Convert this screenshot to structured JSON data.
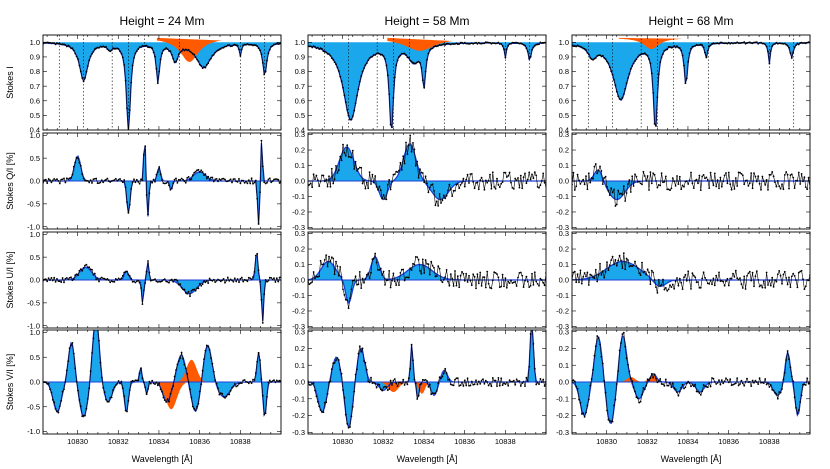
{
  "figure": {
    "colors": {
      "absorption_fill": "#1aa7ec",
      "emission_fill": "#ff5a00",
      "fit_line": "#1f3fd6",
      "observed": "#000000"
    }
  },
  "chart_data": [
    {
      "type": "line",
      "col": 0,
      "row": 0,
      "title": "Height = 24 Mm",
      "ylabel": "Stokes I",
      "xlim": [
        10828.3,
        10840.0
      ],
      "ylim": [
        0.4,
        1.05
      ],
      "yticks": [
        0.4,
        0.5,
        0.6,
        0.7,
        0.8,
        0.9,
        1.0
      ],
      "xticks": [
        10830,
        10832,
        10834,
        10836,
        10838
      ],
      "show_x_ticklabels": false,
      "lines": [
        10829.1,
        10830.3,
        10831.7,
        10832.5,
        10833.3,
        10835.0,
        10838.0,
        10839.2
      ],
      "series": [
        {
          "name": "",
          "continuum": 1.0,
          "features": [
            [
              10830.3,
              0.26,
              0.25
            ],
            [
              10831.6,
              0.04,
              0.15
            ],
            [
              10832.5,
              0.6,
              0.12
            ],
            [
              10833.95,
              0.26,
              0.1
            ],
            [
              10834.8,
              0.12,
              0.18
            ],
            [
              10836.2,
              0.17,
              0.45
            ],
            [
              10838.0,
              0.08,
              0.06
            ],
            [
              10839.2,
              0.22,
              0.12
            ]
          ]
        }
      ]
    },
    {
      "type": "line",
      "col": 1,
      "row": 0,
      "title": "Height = 58 Mm",
      "ylabel": "",
      "xlim": [
        10828.3,
        10840.0
      ],
      "ylim": [
        0.4,
        1.05
      ],
      "yticks": [
        0.4,
        0.5,
        0.6,
        0.7,
        0.8,
        0.9,
        1.0
      ],
      "xticks": [
        10830,
        10832,
        10834,
        10836,
        10838
      ],
      "show_x_ticklabels": false,
      "lines": [
        10829.1,
        10830.3,
        10831.7,
        10832.5,
        10833.3,
        10835.0,
        10838.0,
        10839.2
      ],
      "series": [
        {
          "name": "",
          "continuum": 1.0,
          "features": [
            [
              10830.4,
              0.53,
              0.45
            ],
            [
              10832.4,
              0.58,
              0.12
            ],
            [
              10833.5,
              0.12,
              0.35
            ],
            [
              10834.0,
              0.27,
              0.1
            ],
            [
              10838.0,
              0.1,
              0.06
            ],
            [
              10839.2,
              0.12,
              0.1
            ]
          ]
        }
      ]
    },
    {
      "type": "line",
      "col": 2,
      "row": 0,
      "title": "Height = 68 Mm",
      "ylabel": "",
      "xlim": [
        10828.3,
        10840.0
      ],
      "ylim": [
        0.4,
        1.05
      ],
      "yticks": [
        0.4,
        0.5,
        0.6,
        0.7,
        0.8,
        0.9,
        1.0
      ],
      "xticks": [
        10830,
        10832,
        10834,
        10836,
        10838
      ],
      "show_x_ticklabels": false,
      "lines": [
        10829.1,
        10830.3,
        10831.7,
        10832.5,
        10833.3,
        10835.0,
        10838.0,
        10839.2
      ],
      "series": [
        {
          "name": "",
          "continuum": 1.0,
          "features": [
            [
              10829.3,
              0.08,
              0.25
            ],
            [
              10830.7,
              0.39,
              0.45
            ],
            [
              10832.4,
              0.58,
              0.12
            ],
            [
              10833.9,
              0.28,
              0.1
            ],
            [
              10834.9,
              0.1,
              0.08
            ],
            [
              10838.0,
              0.14,
              0.06
            ],
            [
              10839.1,
              0.1,
              0.1
            ]
          ]
        }
      ]
    },
    {
      "type": "line",
      "col": 0,
      "row": 1,
      "title": "",
      "ylabel": "Stokes Q/I [%]",
      "xlim": [
        10828.3,
        10840.0
      ],
      "ylim": [
        -1.05,
        1.05
      ],
      "yticks": [
        -1.0,
        -0.5,
        0.0,
        0.5,
        1.0
      ],
      "xticks": [
        10830,
        10832,
        10834,
        10836,
        10838
      ],
      "show_x_ticklabels": false,
      "series": [
        {
          "name": "",
          "noise": 0.06,
          "bumps": [
            [
              10830.0,
              0.55,
              0.15
            ],
            [
              10832.5,
              -0.7,
              0.08
            ],
            [
              10833.3,
              0.9,
              0.05
            ],
            [
              10833.45,
              -0.8,
              0.05
            ],
            [
              10834.0,
              0.3,
              0.08
            ],
            [
              10834.6,
              -0.2,
              0.06
            ],
            [
              10836.0,
              0.2,
              0.3
            ],
            [
              10838.9,
              -0.95,
              0.05
            ],
            [
              10839.05,
              0.9,
              0.04
            ]
          ]
        }
      ]
    },
    {
      "type": "line",
      "col": 1,
      "row": 1,
      "title": "",
      "ylabel": "",
      "xlim": [
        10828.3,
        10840.0
      ],
      "ylim": [
        -0.31,
        0.31
      ],
      "yticks": [
        -0.3,
        -0.2,
        -0.1,
        0.0,
        0.1,
        0.2,
        0.3
      ],
      "xticks": [
        10830,
        10832,
        10834,
        10836,
        10838
      ],
      "show_x_ticklabels": false,
      "series": [
        {
          "name": "",
          "noise": 0.06,
          "bumps": [
            [
              10830.2,
              0.22,
              0.35
            ],
            [
              10833.3,
              0.24,
              0.3
            ],
            [
              10832.0,
              -0.12,
              0.2
            ],
            [
              10834.8,
              -0.12,
              0.4
            ]
          ]
        }
      ]
    },
    {
      "type": "line",
      "col": 2,
      "row": 1,
      "title": "",
      "ylabel": "",
      "xlim": [
        10828.3,
        10840.0
      ],
      "ylim": [
        -0.31,
        0.31
      ],
      "yticks": [
        -0.3,
        -0.2,
        -0.1,
        0.0,
        0.1,
        0.2,
        0.3
      ],
      "xticks": [
        10830,
        10832,
        10834,
        10836,
        10838
      ],
      "show_x_ticklabels": false,
      "series": [
        {
          "name": "",
          "noise": 0.06,
          "bumps": [
            [
              10830.5,
              -0.12,
              0.4
            ],
            [
              10829.6,
              0.08,
              0.2
            ]
          ]
        }
      ]
    },
    {
      "type": "line",
      "col": 0,
      "row": 2,
      "title": "",
      "ylabel": "Stokes U/I [%]",
      "xlim": [
        10828.3,
        10840.0
      ],
      "ylim": [
        -1.05,
        1.05
      ],
      "yticks": [
        -1.0,
        -0.5,
        0.0,
        0.5,
        1.0
      ],
      "xticks": [
        10830,
        10832,
        10834,
        10836,
        10838
      ],
      "show_x_ticklabels": false,
      "series": [
        {
          "name": "",
          "noise": 0.06,
          "bumps": [
            [
              10830.4,
              0.28,
              0.3
            ],
            [
              10832.4,
              0.2,
              0.1
            ],
            [
              10833.2,
              -0.5,
              0.05
            ],
            [
              10833.45,
              0.4,
              0.05
            ],
            [
              10835.5,
              -0.3,
              0.35
            ],
            [
              10838.8,
              0.6,
              0.06
            ],
            [
              10839.1,
              -0.9,
              0.05
            ]
          ]
        }
      ]
    },
    {
      "type": "line",
      "col": 1,
      "row": 2,
      "title": "",
      "ylabel": "",
      "xlim": [
        10828.3,
        10840.0
      ],
      "ylim": [
        -0.31,
        0.31
      ],
      "yticks": [
        -0.3,
        -0.2,
        -0.1,
        0.0,
        0.1,
        0.2,
        0.3
      ],
      "xticks": [
        10830,
        10832,
        10834,
        10836,
        10838
      ],
      "show_x_ticklabels": false,
      "series": [
        {
          "name": "",
          "noise": 0.06,
          "bumps": [
            [
              10829.3,
              0.12,
              0.35
            ],
            [
              10830.3,
              -0.15,
              0.15
            ],
            [
              10831.6,
              0.15,
              0.2
            ],
            [
              10833.8,
              0.1,
              0.6
            ]
          ]
        }
      ]
    },
    {
      "type": "line",
      "col": 2,
      "row": 2,
      "title": "",
      "ylabel": "",
      "xlim": [
        10828.3,
        10840.0
      ],
      "ylim": [
        -0.31,
        0.31
      ],
      "yticks": [
        -0.3,
        -0.2,
        -0.1,
        0.0,
        0.1,
        0.2,
        0.3
      ],
      "xticks": [
        10830,
        10832,
        10834,
        10836,
        10838
      ],
      "show_x_ticklabels": false,
      "series": [
        {
          "name": "",
          "noise": 0.06,
          "bumps": [
            [
              10830.8,
              0.12,
              0.8
            ],
            [
              10832.6,
              -0.05,
              0.3
            ]
          ]
        }
      ]
    },
    {
      "type": "line",
      "col": 0,
      "row": 3,
      "title": "",
      "ylabel": "Stokes V/I [%]",
      "xlabel": "Wavelength [Å]",
      "xlim": [
        10828.3,
        10840.0
      ],
      "ylim": [
        -1.05,
        1.05
      ],
      "yticks": [
        -1.0,
        -0.5,
        0.0,
        0.5,
        1.0
      ],
      "xticks": [
        10830,
        10832,
        10834,
        10836,
        10838
      ],
      "show_x_ticklabels": true,
      "series": [
        {
          "name": "",
          "noise": 0.05,
          "bumps": [
            [
              10829.0,
              -0.6,
              0.2
            ],
            [
              10829.7,
              0.8,
              0.15
            ],
            [
              10830.3,
              -0.7,
              0.2
            ],
            [
              10830.9,
              1.3,
              0.16
            ],
            [
              10831.5,
              -0.4,
              0.2
            ],
            [
              10832.4,
              -0.6,
              0.1
            ],
            [
              10833.1,
              0.3,
              0.06
            ],
            [
              10833.4,
              -0.25,
              0.06
            ],
            [
              10834.4,
              -0.4,
              0.2
            ],
            [
              10835.1,
              0.55,
              0.2
            ],
            [
              10835.8,
              -0.6,
              0.2
            ],
            [
              10836.4,
              0.75,
              0.2
            ],
            [
              10837.2,
              -0.3,
              0.3
            ],
            [
              10838.9,
              0.6,
              0.08
            ],
            [
              10839.2,
              -0.7,
              0.08
            ]
          ]
        }
      ]
    },
    {
      "type": "line",
      "col": 1,
      "row": 3,
      "title": "",
      "ylabel": "",
      "xlabel": "Wavelength [Å]",
      "xlim": [
        10828.3,
        10840.0
      ],
      "ylim": [
        -0.31,
        0.31
      ],
      "yticks": [
        -0.3,
        -0.2,
        -0.1,
        0.0,
        0.1,
        0.2,
        0.3
      ],
      "xticks": [
        10830,
        10832,
        10834,
        10836,
        10838
      ],
      "show_x_ticklabels": true,
      "series": [
        {
          "name": "",
          "noise": 0.025,
          "bumps": [
            [
              10829.0,
              -0.18,
              0.2
            ],
            [
              10829.7,
              0.15,
              0.2
            ],
            [
              10830.3,
              -0.27,
              0.18
            ],
            [
              10830.9,
              0.2,
              0.18
            ],
            [
              10832.0,
              -0.05,
              0.2
            ],
            [
              10833.4,
              0.22,
              0.06
            ],
            [
              10833.7,
              -0.1,
              0.06
            ],
            [
              10834.5,
              -0.08,
              0.15
            ],
            [
              10835.0,
              0.07,
              0.15
            ],
            [
              10839.3,
              0.35,
              0.08
            ]
          ]
        }
      ]
    },
    {
      "type": "line",
      "col": 2,
      "row": 3,
      "title": "",
      "ylabel": "",
      "xlabel": "Wavelength [Å]",
      "xlim": [
        10828.3,
        10840.0
      ],
      "ylim": [
        -0.31,
        0.31
      ],
      "yticks": [
        -0.3,
        -0.2,
        -0.1,
        0.0,
        0.1,
        0.2,
        0.3
      ],
      "xticks": [
        10830,
        10832,
        10834,
        10836,
        10838
      ],
      "show_x_ticklabels": true,
      "series": [
        {
          "name": "",
          "noise": 0.025,
          "bumps": [
            [
              10828.9,
              -0.2,
              0.2
            ],
            [
              10829.6,
              0.27,
              0.18
            ],
            [
              10830.2,
              -0.25,
              0.2
            ],
            [
              10830.8,
              0.28,
              0.18
            ],
            [
              10831.6,
              -0.1,
              0.2
            ],
            [
              10832.3,
              0.05,
              0.15
            ],
            [
              10833.5,
              -0.06,
              0.2
            ],
            [
              10834.6,
              -0.06,
              0.2
            ],
            [
              10838.4,
              -0.08,
              0.2
            ],
            [
              10838.9,
              0.18,
              0.12
            ],
            [
              10839.4,
              -0.2,
              0.12
            ]
          ]
        }
      ]
    }
  ]
}
